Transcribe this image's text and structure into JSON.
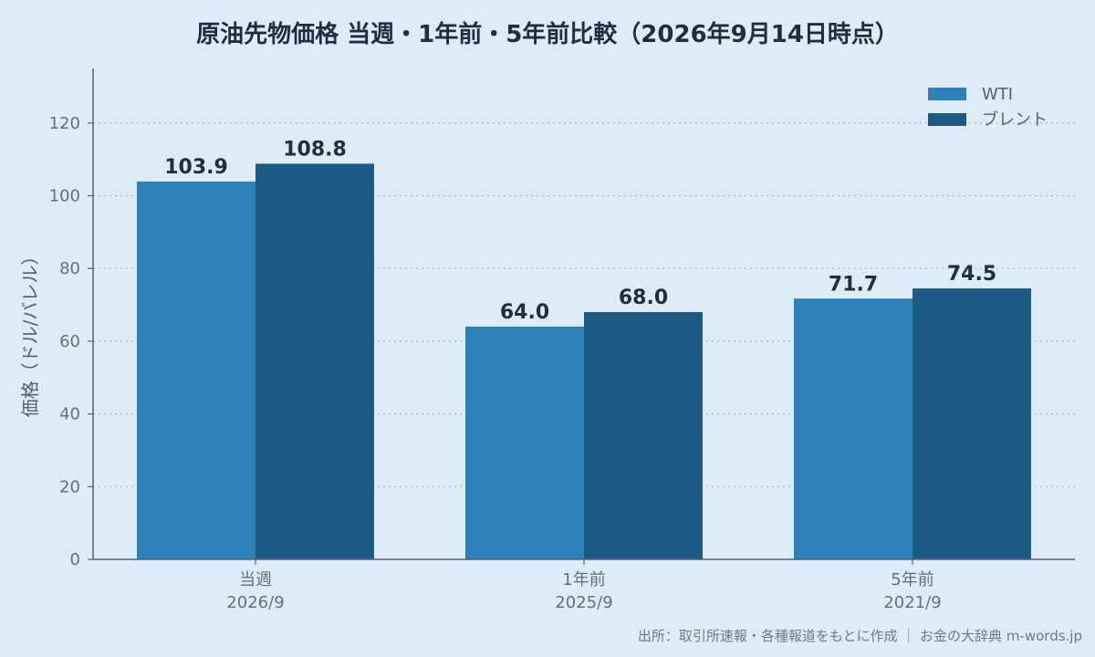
{
  "chart_data": {
    "type": "bar",
    "title": "原油先物価格 当週・1年前・5年前比較（2026年9月14日時点）",
    "ylabel": "価格（ドル/バレル）",
    "ylim": [
      0,
      135
    ],
    "yticks": [
      0,
      20,
      40,
      60,
      80,
      100,
      120
    ],
    "grid": true,
    "legend_position": "top-right",
    "categories": [
      {
        "label": "当週",
        "sublabel": "2026/9"
      },
      {
        "label": "1年前",
        "sublabel": "2025/9"
      },
      {
        "label": "5年前",
        "sublabel": "2021/9"
      }
    ],
    "series": [
      {
        "name": "WTI",
        "values": [
          103.9,
          64.0,
          71.7
        ],
        "color": "#2e80b8"
      },
      {
        "name": "ブレント",
        "values": [
          108.8,
          68.0,
          74.5
        ],
        "color": "#1d5b87"
      }
    ],
    "value_labels": [
      [
        "103.9",
        "64.0",
        "71.7"
      ],
      [
        "108.8",
        "68.0",
        "74.5"
      ]
    ]
  },
  "source": "出所：取引所速報・各種報道をもとに作成 ｜ お金の大辞典 m-words.jp"
}
